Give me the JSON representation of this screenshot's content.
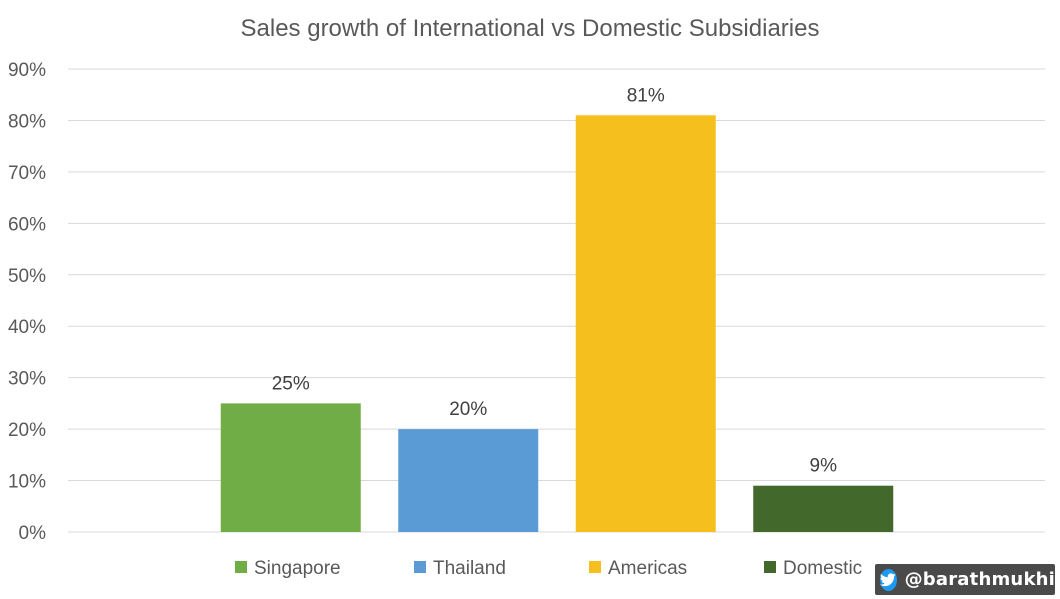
{
  "chart_data": {
    "type": "bar",
    "title": "Sales growth of International vs Domestic Subsidiaries",
    "xlabel": "",
    "ylabel": "",
    "categories": [
      "Singapore",
      "Thailand",
      "Americas",
      "Domestic"
    ],
    "values": [
      25,
      20,
      81,
      9
    ],
    "data_labels": [
      "25%",
      "20%",
      "81%",
      "9%"
    ],
    "colors": [
      "#70ad47",
      "#5b9bd5",
      "#f5c01d",
      "#43682b"
    ],
    "ylim": [
      0,
      90
    ],
    "yticks": [
      0,
      10,
      20,
      30,
      40,
      50,
      60,
      70,
      80,
      90
    ],
    "ytick_labels": [
      "0%",
      "10%",
      "20%",
      "30%",
      "40%",
      "50%",
      "60%",
      "70%",
      "80%",
      "90%"
    ],
    "grid": true,
    "legend": "bottom"
  },
  "watermark": {
    "handle": "@barathmukhi",
    "icon": "twitter-bird-icon",
    "icon_color": "#1d9bf0"
  }
}
